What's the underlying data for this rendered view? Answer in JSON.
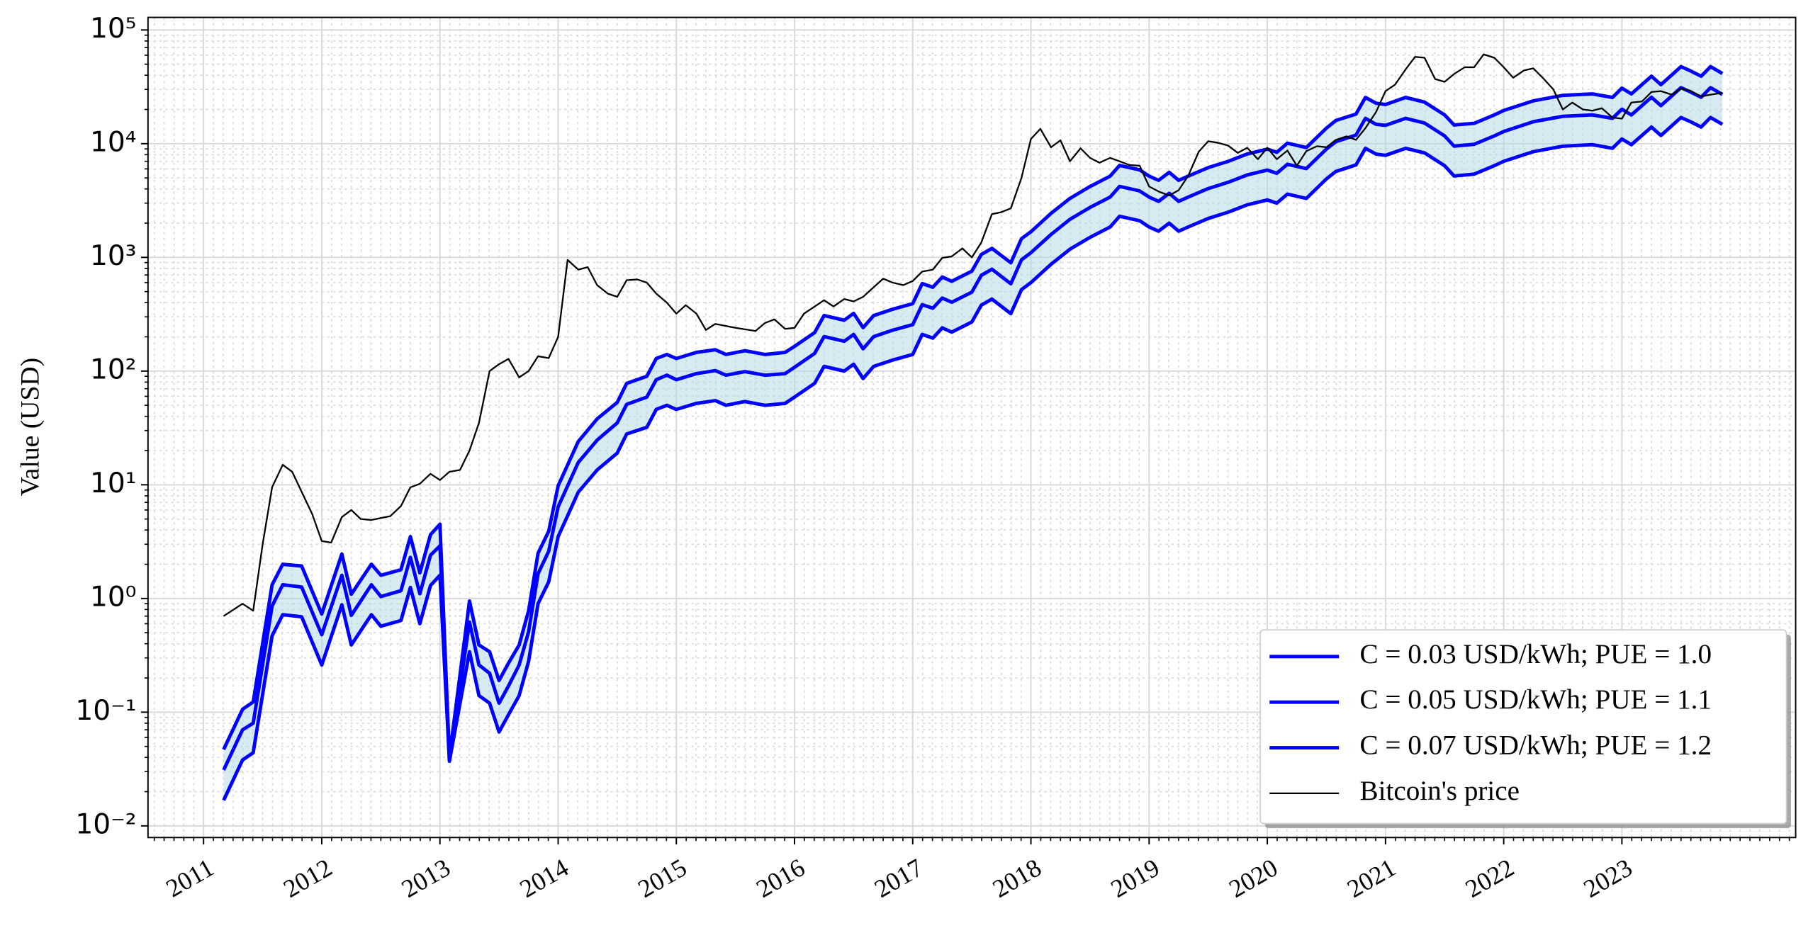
{
  "chart_data": {
    "type": "line",
    "ylabel": "Value (USD)",
    "log_y": true,
    "grid": true,
    "minor_grid": true,
    "legend": "lower right",
    "xlim": [
      2010.53,
      2024.47
    ],
    "xticks": [
      2011,
      2012,
      2013,
      2014,
      2015,
      2016,
      2017,
      2018,
      2019,
      2020,
      2021,
      2022,
      2023
    ],
    "ylim": [
      0.0079,
      129000
    ],
    "yticks": [
      {
        "value": 0.01,
        "label": "10⁻²"
      },
      {
        "value": 0.1,
        "label": "10⁻¹"
      },
      {
        "value": 1,
        "label": "10⁰"
      },
      {
        "value": 10,
        "label": "10¹"
      },
      {
        "value": 100,
        "label": "10²"
      },
      {
        "value": 1000,
        "label": "10³"
      },
      {
        "value": 10000,
        "label": "10⁴"
      },
      {
        "value": 100000,
        "label": "10⁵"
      }
    ],
    "fill_color": "#add8e6",
    "x": [
      2011.17,
      2011.33,
      2011.42,
      2011.58,
      2011.67,
      2011.83,
      2012.0,
      2012.17,
      2012.25,
      2012.42,
      2012.5,
      2012.67,
      2012.75,
      2012.83,
      2012.92,
      2013.0,
      2013.08,
      2013.25,
      2013.33,
      2013.42,
      2013.5,
      2013.58,
      2013.67,
      2013.75,
      2013.83,
      2013.92,
      2014.0,
      2014.17,
      2014.33,
      2014.5,
      2014.58,
      2014.75,
      2014.83,
      2014.92,
      2015.0,
      2015.17,
      2015.33,
      2015.42,
      2015.58,
      2015.75,
      2015.92,
      2016.0,
      2016.17,
      2016.25,
      2016.42,
      2016.5,
      2016.58,
      2016.67,
      2016.83,
      2017.0,
      2017.08,
      2017.17,
      2017.25,
      2017.33,
      2017.5,
      2017.58,
      2017.67,
      2017.83,
      2017.92,
      2018.0,
      2018.17,
      2018.33,
      2018.5,
      2018.67,
      2018.75,
      2018.92,
      2019.0,
      2019.08,
      2019.17,
      2019.25,
      2019.33,
      2019.5,
      2019.67,
      2019.83,
      2020.0,
      2020.08,
      2020.17,
      2020.33,
      2020.5,
      2020.58,
      2020.75,
      2020.83,
      2020.92,
      2021.0,
      2021.17,
      2021.33,
      2021.5,
      2021.58,
      2021.75,
      2021.92,
      2022.0,
      2022.25,
      2022.5,
      2022.75,
      2022.92,
      2023.0,
      2023.08,
      2023.25,
      2023.33,
      2023.5,
      2023.58,
      2023.67,
      2023.75,
      2023.85
    ],
    "series": [
      {
        "name": "C = 0.03 USD/kWh; PUE = 1.0",
        "color": "#0000ff",
        "width": 3,
        "values": [
          0.0168,
          0.038,
          0.044,
          0.47,
          0.72,
          0.69,
          0.26,
          0.88,
          0.39,
          0.72,
          0.57,
          0.64,
          1.25,
          0.6,
          1.3,
          1.6,
          0.037,
          0.34,
          0.14,
          0.12,
          0.067,
          0.095,
          0.14,
          0.28,
          0.9,
          1.4,
          3.5,
          8.6,
          13.5,
          19,
          28,
          32,
          46,
          50,
          46,
          52,
          55,
          50,
          54,
          50,
          52,
          59,
          78,
          110,
          100,
          115,
          86,
          110,
          125,
          140,
          210,
          195,
          240,
          220,
          270,
          380,
          430,
          320,
          520,
          600,
          870,
          1180,
          1500,
          1850,
          2300,
          2100,
          1850,
          1700,
          2000,
          1700,
          1850,
          2200,
          2500,
          2900,
          3200,
          3000,
          3600,
          3300,
          4900,
          5700,
          6500,
          9100,
          8100,
          7900,
          9100,
          8300,
          6400,
          5200,
          5400,
          6400,
          7000,
          8500,
          9500,
          9800,
          9100,
          11000,
          9800,
          14000,
          11800,
          17000,
          15600,
          14000,
          17000,
          14800
        ]
      },
      {
        "name": "C = 0.05 USD/kWh; PUE = 1.1",
        "color": "#0000ff",
        "width": 3,
        "values": [
          0.031,
          0.07,
          0.08,
          0.86,
          1.32,
          1.26,
          0.48,
          1.6,
          0.71,
          1.32,
          1.04,
          1.17,
          2.3,
          1.1,
          2.4,
          2.9,
          0.038,
          0.62,
          0.26,
          0.22,
          0.12,
          0.17,
          0.26,
          0.51,
          1.65,
          2.6,
          6.4,
          15.7,
          24.7,
          35,
          51,
          59,
          84,
          92,
          84,
          95,
          101,
          92,
          99,
          92,
          95,
          108,
          143,
          201,
          183,
          210,
          157,
          201,
          229,
          256,
          384,
          357,
          439,
          403,
          494,
          695,
          787,
          586,
          952,
          1100,
          1590,
          2160,
          2750,
          3390,
          4210,
          3840,
          3390,
          3110,
          3660,
          3110,
          3390,
          4030,
          4580,
          5310,
          5860,
          5490,
          6590,
          6040,
          8970,
          10400,
          11900,
          16700,
          14800,
          14500,
          16700,
          15200,
          11700,
          9520,
          9880,
          11700,
          12800,
          15600,
          17400,
          17900,
          16700,
          20100,
          17900,
          25600,
          21600,
          31100,
          28500,
          25600,
          31100,
          27100
        ]
      },
      {
        "name": "C = 0.07 USD/kWh; PUE = 1.2",
        "color": "#0000ff",
        "width": 3,
        "values": [
          0.047,
          0.106,
          0.123,
          1.32,
          2.0,
          1.93,
          0.73,
          2.46,
          1.09,
          2.0,
          1.6,
          1.79,
          3.5,
          1.68,
          3.64,
          4.5,
          0.04,
          0.95,
          0.39,
          0.34,
          0.19,
          0.27,
          0.39,
          0.78,
          2.5,
          3.9,
          9.8,
          24,
          38,
          53,
          78,
          90,
          129,
          140,
          129,
          146,
          154,
          140,
          151,
          140,
          146,
          165,
          218,
          308,
          280,
          322,
          241,
          308,
          350,
          392,
          588,
          546,
          672,
          616,
          756,
          1060,
          1200,
          896,
          1460,
          1680,
          2440,
          3300,
          4200,
          5180,
          6440,
          5880,
          5180,
          4760,
          5600,
          4760,
          5180,
          6160,
          7000,
          8120,
          8960,
          8400,
          10100,
          9240,
          13700,
          16000,
          18200,
          25500,
          22700,
          22100,
          25500,
          23200,
          17900,
          14600,
          15100,
          17900,
          19600,
          23800,
          26600,
          27400,
          25500,
          30800,
          27400,
          39200,
          33000,
          47600,
          43700,
          39200,
          47600,
          41400
        ]
      },
      {
        "name": "Bitcoin's price",
        "color": "#000000",
        "width": 1.4,
        "x": [
          2011.17,
          2011.33,
          2011.42,
          2011.5,
          2011.58,
          2011.67,
          2011.75,
          2011.92,
          2012.0,
          2012.08,
          2012.17,
          2012.25,
          2012.33,
          2012.42,
          2012.5,
          2012.58,
          2012.67,
          2012.75,
          2012.83,
          2012.92,
          2013.0,
          2013.08,
          2013.17,
          2013.25,
          2013.33,
          2013.42,
          2013.5,
          2013.58,
          2013.67,
          2013.75,
          2013.83,
          2013.92,
          2014.0,
          2014.08,
          2014.17,
          2014.25,
          2014.33,
          2014.42,
          2014.5,
          2014.58,
          2014.67,
          2014.75,
          2014.83,
          2014.92,
          2015.0,
          2015.08,
          2015.17,
          2015.25,
          2015.33,
          2015.5,
          2015.67,
          2015.75,
          2015.83,
          2015.92,
          2016.0,
          2016.08,
          2016.25,
          2016.33,
          2016.42,
          2016.5,
          2016.58,
          2016.75,
          2016.83,
          2016.92,
          2017.0,
          2017.08,
          2017.17,
          2017.25,
          2017.33,
          2017.42,
          2017.5,
          2017.58,
          2017.67,
          2017.75,
          2017.83,
          2017.92,
          2018.0,
          2018.08,
          2018.17,
          2018.25,
          2018.33,
          2018.42,
          2018.5,
          2018.58,
          2018.67,
          2018.75,
          2018.83,
          2018.92,
          2019.0,
          2019.08,
          2019.17,
          2019.25,
          2019.33,
          2019.42,
          2019.5,
          2019.58,
          2019.67,
          2019.75,
          2019.83,
          2019.92,
          2020.0,
          2020.08,
          2020.17,
          2020.25,
          2020.33,
          2020.42,
          2020.5,
          2020.58,
          2020.67,
          2020.75,
          2020.83,
          2020.92,
          2021.0,
          2021.08,
          2021.17,
          2021.25,
          2021.33,
          2021.42,
          2021.5,
          2021.58,
          2021.67,
          2021.75,
          2021.83,
          2021.92,
          2022.0,
          2022.08,
          2022.17,
          2022.25,
          2022.33,
          2022.42,
          2022.5,
          2022.58,
          2022.67,
          2022.75,
          2022.83,
          2022.92,
          2023.0,
          2023.08,
          2023.17,
          2023.25,
          2023.33,
          2023.42,
          2023.5,
          2023.58,
          2023.67,
          2023.75,
          2023.85
        ],
        "values": [
          0.7,
          0.9,
          0.78,
          3.0,
          9.5,
          15,
          13,
          5.5,
          3.2,
          3.1,
          5.2,
          6.0,
          5.0,
          4.9,
          5.1,
          5.3,
          6.5,
          9.5,
          10.2,
          12.5,
          11,
          13,
          13.5,
          20,
          35,
          100,
          115,
          128,
          88,
          100,
          135,
          130,
          200,
          950,
          780,
          820,
          570,
          480,
          450,
          630,
          640,
          600,
          480,
          400,
          320,
          380,
          320,
          230,
          260,
          240,
          225,
          265,
          285,
          235,
          240,
          320,
          420,
          370,
          430,
          410,
          450,
          650,
          600,
          570,
          620,
          750,
          780,
          990,
          1020,
          1200,
          1000,
          1350,
          2400,
          2500,
          2700,
          5000,
          11000,
          13500,
          9300,
          10700,
          7000,
          9100,
          7500,
          6800,
          7500,
          7000,
          6500,
          6400,
          4200,
          3800,
          3500,
          3900,
          5200,
          8500,
          10500,
          10200,
          9600,
          8300,
          9200,
          7300,
          9200,
          7300,
          8700,
          6400,
          8600,
          9500,
          9300,
          10800,
          11600,
          10800,
          13700,
          19000,
          29000,
          33000,
          45000,
          58000,
          57000,
          37000,
          35000,
          41000,
          47000,
          47000,
          61000,
          57000,
          47000,
          38000,
          44000,
          46000,
          38000,
          30000,
          20000,
          23000,
          20000,
          19500,
          20500,
          17000,
          16600,
          23000,
          23500,
          28500,
          29000,
          27000,
          30500,
          29200,
          26000,
          27000,
          28000
        ]
      }
    ]
  }
}
